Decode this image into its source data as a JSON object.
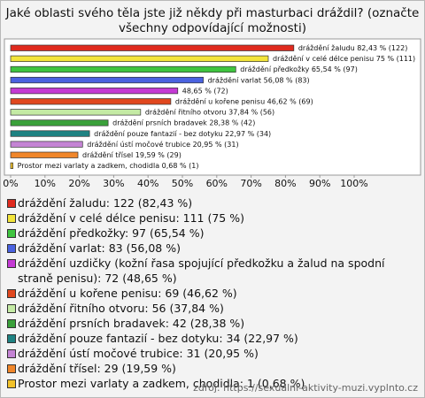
{
  "chart_data": {
    "type": "bar",
    "orientation": "horizontal",
    "title": [
      "Jaké oblasti svého těla jste již někdy při masturbaci dráždil? (označte",
      "všechny odpovídající možnosti)"
    ],
    "categories": [
      "dráždění žaludu: 122 (82,43 %)",
      "dráždění v celé délce penisu: 111 (75 %)",
      "dráždění předkožky: 97 (65,54 %)",
      "dráždění varlat: 83 (56,08 %)",
      "dráždění uzdičky (kožní řasa spojující předkožku a žalud na spodní straně penisu): 72 (48,65 %)",
      "dráždění u kořene penisu: 69 (46,62 %)",
      "dráždění řitního otvoru: 56 (37,84 %)",
      "dráždění prsních bradavek: 42 (28,38 %)",
      "dráždění pouze fantazií - bez dotyku: 34 (22,97 %)",
      "dráždění ústí močové trubice: 31 (20,95 %)",
      "dráždění třísel: 29 (19,59 %)",
      "Prostor mezi varlaty a zadkem, chodidla: 1 (0,68 %)"
    ],
    "values": [
      82.43,
      75,
      65.54,
      56.08,
      48.65,
      46.62,
      37.84,
      28.38,
      22.97,
      20.95,
      19.59,
      0.68
    ],
    "value_labels": [
      "dráždění žaludu 82,43 % (122)",
      "dráždění v celé délce penisu 75 % (111)",
      "dráždění předkožky 65,54 % (97)",
      "dráždění varlat 56,08 % (83)",
      "48,65 % (72)",
      "dráždění u kořene penisu 46,62 % (69)",
      "dráždění řitního otvoru 37,84 % (56)",
      "dráždění prsních bradavek 28,38 % (42)",
      "dráždění pouze fantazií - bez dotyku 22,97 % (34)",
      "dráždění ústí močové trubice 20,95 % (31)",
      "dráždění třísel 19,59 % (29)",
      "Prostor mezi varlaty a zadkem, chodidla 0,68 % (1)"
    ],
    "colors": [
      "#e02a1e",
      "#f2e43a",
      "#3fc43f",
      "#4a62e0",
      "#c43ad4",
      "#e0471e",
      "#c4eaa4",
      "#3aa03a",
      "#1e8282",
      "#c484d4",
      "#f0862a",
      "#f2c22a"
    ],
    "xlim": [
      0,
      100
    ],
    "xticks": [
      {
        "value": 0,
        "label": "0%"
      },
      {
        "value": 10,
        "label": "10%"
      },
      {
        "value": 20,
        "label": "20%"
      },
      {
        "value": 30,
        "label": "30%"
      },
      {
        "value": 40,
        "label": "40%"
      },
      {
        "value": 50,
        "label": "50%"
      },
      {
        "value": 60,
        "label": "60%"
      },
      {
        "value": 70,
        "label": "70%"
      },
      {
        "value": 80,
        "label": "80%"
      },
      {
        "value": 90,
        "label": "90%"
      },
      {
        "value": 100,
        "label": "100%"
      }
    ],
    "source": "zdroj: https://sexualni-aktivity-muzi.vyplnto.cz"
  }
}
